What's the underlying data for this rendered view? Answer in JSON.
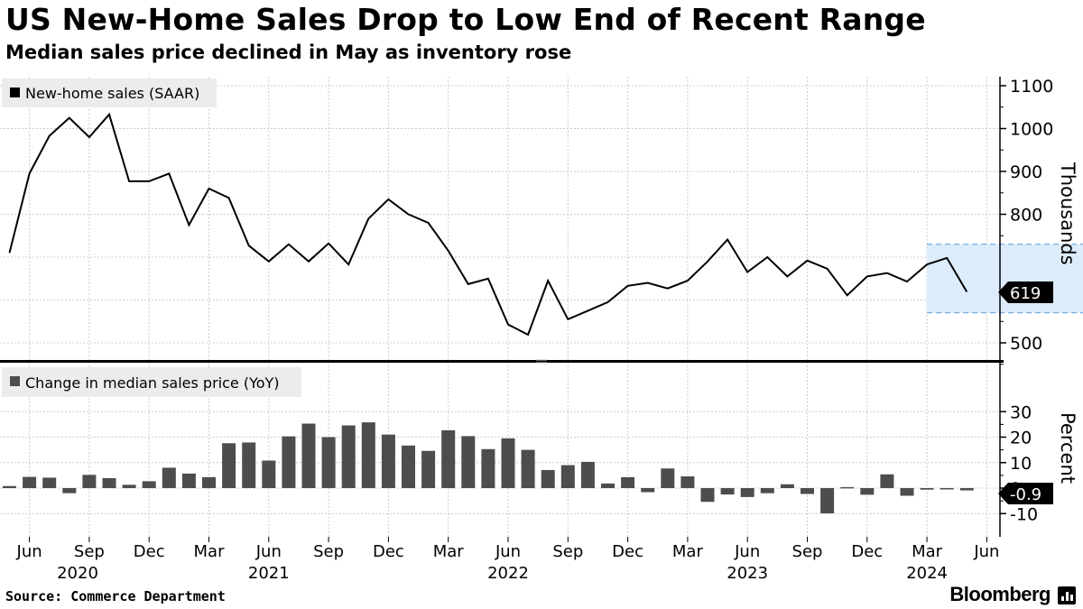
{
  "header": {
    "title": "US New-Home Sales Drop to Low End of Recent Range",
    "subtitle": "Median sales price declined in May as inventory rose"
  },
  "footer": {
    "source": "Source: Commerce Department",
    "brand": "Bloomberg"
  },
  "colors": {
    "line": "#000000",
    "bar": "#4d4d4d",
    "band_fill": "#dcecfa",
    "band_edge": "#5b9bd5",
    "grid": "#cccccc",
    "legend_bg": "#ececec"
  },
  "chart_data": [
    {
      "type": "line",
      "legend": "New-home sales (SAAR)",
      "ylabel": "Thousands",
      "ylim": [
        450,
        1120
      ],
      "yticks": [
        500,
        600,
        700,
        800,
        900,
        1000,
        1100
      ],
      "last_value_label": "619",
      "band": {
        "from_month_index": 46,
        "to_month_index": 63,
        "low": 570,
        "high": 730
      },
      "values": [
        710,
        895,
        983,
        1025,
        980,
        1033,
        877,
        877,
        895,
        775,
        860,
        838,
        727,
        690,
        730,
        690,
        732,
        683,
        790,
        835,
        800,
        780,
        715,
        637,
        650,
        543,
        519,
        645,
        555,
        575,
        595,
        633,
        640,
        627,
        645,
        690,
        741,
        665,
        700,
        655,
        692,
        673,
        611,
        655,
        663,
        643,
        683,
        698,
        619
      ]
    },
    {
      "type": "bar",
      "legend": "Change in median sales price (YoY)",
      "ylabel": "Percent",
      "ylim": [
        -13,
        35
      ],
      "yticks": [
        -10,
        0,
        10,
        20,
        30
      ],
      "last_value_label": "-0.9",
      "values": [
        0.8,
        4.4,
        4.1,
        -2.0,
        5.2,
        3.9,
        1.3,
        2.7,
        8.0,
        5.7,
        4.3,
        17.6,
        17.9,
        10.8,
        20.3,
        25.3,
        20.0,
        24.6,
        25.8,
        21.0,
        16.7,
        14.6,
        22.7,
        20.4,
        15.3,
        19.5,
        15.0,
        7.1,
        9.0,
        10.3,
        1.8,
        4.3,
        -1.6,
        7.7,
        4.6,
        -5.4,
        -2.5,
        -3.5,
        -2.0,
        1.5,
        -2.3,
        -9.9,
        0.4,
        -2.6,
        5.4,
        -3.0,
        -0.6,
        -0.4,
        -0.9
      ]
    }
  ],
  "x_axis": {
    "tick_labels": [
      "Jun",
      "Sep",
      "Dec",
      "Mar",
      "Jun",
      "Sep",
      "Dec",
      "Mar",
      "Jun",
      "Sep",
      "Dec",
      "Mar",
      "Jun",
      "Sep",
      "Dec",
      "Mar",
      "Jun"
    ],
    "tick_month_index": [
      1,
      4,
      7,
      10,
      13,
      16,
      19,
      22,
      25,
      28,
      31,
      34,
      37,
      40,
      43,
      46,
      49
    ],
    "year_labels": [
      "2020",
      "2021",
      "2022",
      "2023",
      "2024"
    ],
    "year_tick_position": [
      1,
      13,
      25,
      37,
      46
    ]
  }
}
